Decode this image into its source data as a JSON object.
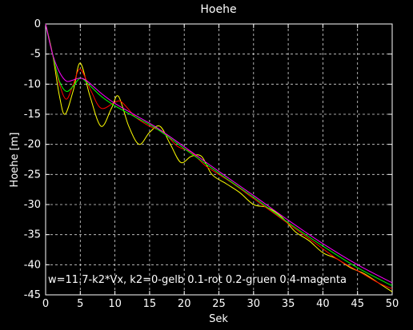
{
  "chart_data": {
    "type": "line",
    "title": "Hoehe",
    "xlabel": "Sek",
    "ylabel": "Hoehe [m]",
    "xlim": [
      0,
      50
    ],
    "ylim": [
      -45,
      0
    ],
    "xticks": [
      0,
      5,
      10,
      15,
      20,
      25,
      30,
      35,
      40,
      45,
      50
    ],
    "yticks": [
      0,
      -5,
      -10,
      -15,
      -20,
      -25,
      -30,
      -35,
      -40,
      -45
    ],
    "grid": true,
    "annotation": "w=11.7-k2*Vx, k2=0-gelb 0.1-rot 0.2-gruen 0.4-magenta",
    "series": [
      {
        "color": "#ffff00",
        "x": [
          0,
          1,
          2,
          2.8,
          4,
          5,
          6.4,
          8,
          9.5,
          10.5,
          12,
          13.5,
          15,
          16.5,
          18,
          19.5,
          21,
          22.5,
          24,
          26,
          28,
          30,
          32,
          34,
          36,
          38,
          40,
          42,
          44,
          46,
          48,
          50
        ],
        "y": [
          0,
          -5,
          -12,
          -15,
          -11,
          -6.5,
          -12,
          -17,
          -14,
          -12,
          -17,
          -20,
          -18,
          -17,
          -20,
          -23,
          -22,
          -22,
          -25,
          -26.5,
          -28,
          -30,
          -30.5,
          -32,
          -34.5,
          -36,
          -38,
          -39,
          -40.5,
          -41.5,
          -43,
          -44.5
        ]
      },
      {
        "color": "#ff0000",
        "x": [
          0,
          1,
          2,
          3,
          4,
          5,
          6.5,
          8,
          10,
          11,
          13,
          15,
          17,
          19,
          21,
          23,
          25,
          27,
          30,
          33,
          36,
          39,
          42,
          45,
          48,
          50
        ],
        "y": [
          0,
          -5,
          -10,
          -12.5,
          -10,
          -7.5,
          -11,
          -14,
          -13,
          -13,
          -15.5,
          -17,
          -18,
          -20.3,
          -21.3,
          -23.5,
          -25,
          -26.5,
          -29,
          -31.5,
          -34,
          -36.5,
          -39,
          -41,
          -43,
          -44
        ]
      },
      {
        "color": "#00ff00",
        "x": [
          0,
          1,
          2,
          3,
          4,
          5,
          6,
          8,
          10,
          13,
          16,
          20,
          25,
          30,
          35,
          40,
          45,
          50
        ],
        "y": [
          0,
          -5,
          -9.5,
          -11.2,
          -10.3,
          -9,
          -9.8,
          -12,
          -13.6,
          -15.5,
          -17.4,
          -20.7,
          -24.8,
          -28.8,
          -33,
          -36.9,
          -40.5,
          -43.5
        ]
      },
      {
        "color": "#ff00ff",
        "x": [
          0,
          1,
          2,
          3,
          4,
          5,
          6,
          8,
          10,
          13,
          16,
          20,
          25,
          30,
          35,
          40,
          45,
          50
        ],
        "y": [
          0,
          -5,
          -8,
          -9.5,
          -9.3,
          -9,
          -9.5,
          -11.5,
          -13.2,
          -15.2,
          -17.2,
          -20.4,
          -24.5,
          -28.5,
          -32.6,
          -36.5,
          -40,
          -43
        ]
      }
    ]
  }
}
